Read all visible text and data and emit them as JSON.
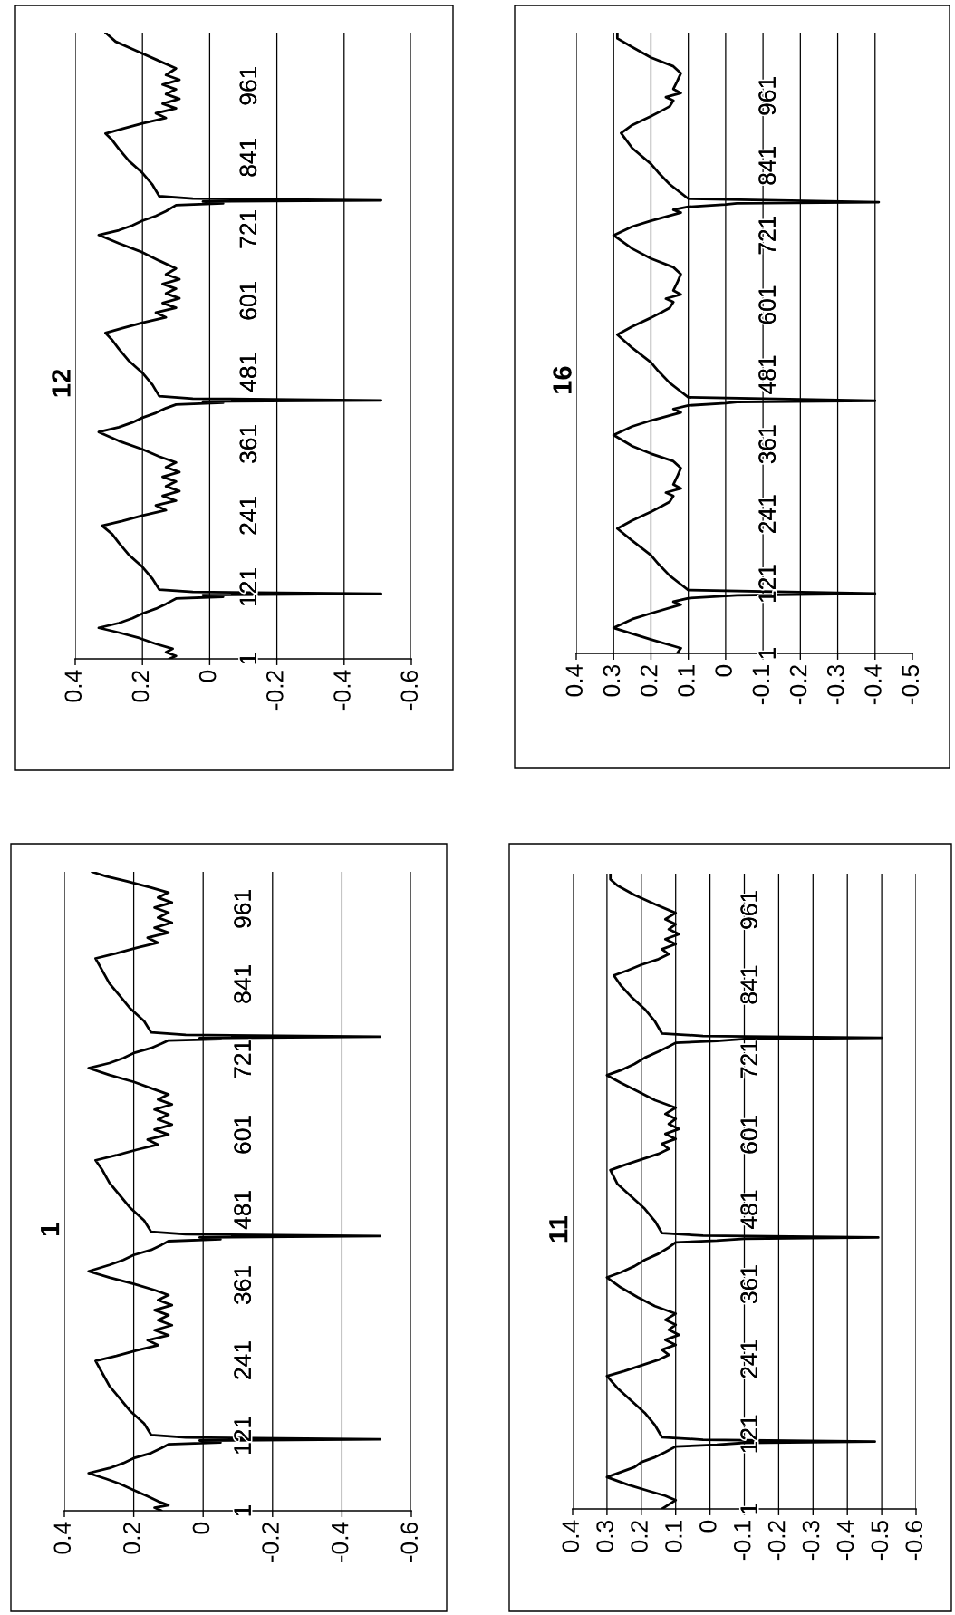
{
  "chart_data": [
    {
      "type": "line",
      "title": "1",
      "xlim": [
        0.4,
        -0.6
      ],
      "xticks": [
        -0.6,
        -0.4,
        -0.2,
        0,
        0.2,
        0.4
      ],
      "ylim": [
        1,
        1020
      ],
      "yticks": [
        1,
        121,
        241,
        361,
        481,
        601,
        721,
        841,
        961
      ],
      "grid": "x",
      "series": [
        {
          "color": "#000000",
          "values": [
            1,
            6,
            10,
            16,
            24,
            34,
            44,
            52,
            61,
            69,
            77,
            85,
            93,
            101,
            107,
            110,
            113,
            115,
            118,
            122,
            140,
            160,
            180,
            200,
            220,
            240,
            248,
            257,
            265,
            273,
            281,
            289,
            297,
            305,
            313,
            321,
            329,
            337,
            345,
            353,
            363,
            373,
            383,
            393,
            401,
            409,
            417,
            425,
            431,
            434,
            437,
            439,
            442,
            446,
            464,
            484,
            504,
            524,
            544,
            560,
            568,
            577,
            585,
            593,
            601,
            609,
            617,
            625,
            633,
            641,
            649,
            657,
            665,
            673,
            685,
            696,
            707,
            715,
            723,
            731,
            739,
            746,
            751,
            753,
            755,
            757,
            760,
            764,
            782,
            802,
            822,
            842,
            862,
            882,
            890,
            899,
            907,
            915,
            923,
            931,
            939,
            947,
            955,
            963,
            971,
            979,
            987,
            995,
            1005,
            1013,
            1020
          ],
          "x": [
            0.12,
            0.14,
            0.1,
            0.13,
            0.16,
            0.2,
            0.24,
            0.28,
            0.33,
            0.27,
            0.23,
            0.2,
            0.15,
            0.12,
            0.1,
            -0.05,
            0.01,
            -0.51,
            0.05,
            0.15,
            0.17,
            0.21,
            0.24,
            0.27,
            0.29,
            0.31,
            0.25,
            0.19,
            0.13,
            0.16,
            0.1,
            0.14,
            0.09,
            0.13,
            0.1,
            0.14,
            0.09,
            0.13,
            0.1,
            0.14,
            0.2,
            0.27,
            0.33,
            0.27,
            0.23,
            0.2,
            0.15,
            0.12,
            0.1,
            -0.05,
            0.01,
            -0.51,
            0.05,
            0.15,
            0.17,
            0.21,
            0.24,
            0.27,
            0.29,
            0.31,
            0.25,
            0.19,
            0.13,
            0.16,
            0.1,
            0.14,
            0.09,
            0.13,
            0.1,
            0.14,
            0.09,
            0.13,
            0.1,
            0.14,
            0.2,
            0.27,
            0.33,
            0.27,
            0.23,
            0.2,
            0.15,
            0.12,
            0.1,
            -0.05,
            0.01,
            -0.51,
            0.05,
            0.15,
            0.17,
            0.21,
            0.24,
            0.27,
            0.29,
            0.31,
            0.25,
            0.19,
            0.13,
            0.16,
            0.1,
            0.14,
            0.09,
            0.13,
            0.1,
            0.14,
            0.09,
            0.13,
            0.1,
            0.15,
            0.22,
            0.28,
            0.32
          ]
        }
      ]
    },
    {
      "type": "line",
      "title": "12",
      "xlim": [
        0.4,
        -0.6
      ],
      "xticks": [
        -0.6,
        -0.4,
        -0.2,
        0,
        0.2,
        0.4
      ],
      "ylim": [
        1,
        1050
      ],
      "yticks": [
        1,
        121,
        241,
        361,
        481,
        601,
        721,
        841,
        961
      ],
      "grid": "x",
      "series": [
        {
          "color": "#000000",
          "values": [
            1,
            6,
            12,
            18,
            26,
            36,
            45,
            53,
            61,
            69,
            77,
            85,
            93,
            102,
            105,
            108,
            110,
            113,
            117,
            135,
            155,
            175,
            195,
            210,
            224,
            232,
            241,
            250,
            258,
            266,
            274,
            282,
            290,
            298,
            306,
            314,
            322,
            330,
            340,
            352,
            366,
            381,
            389,
            397,
            405,
            413,
            421,
            427,
            430,
            432,
            434,
            437,
            441,
            460,
            480,
            500,
            520,
            535,
            547,
            555,
            564,
            573,
            581,
            589,
            597,
            605,
            613,
            621,
            629,
            637,
            645,
            655,
            668,
            682,
            697,
            711,
            719,
            727,
            735,
            743,
            751,
            761,
            764,
            767,
            769,
            772,
            776,
            795,
            815,
            835,
            855,
            870,
            881,
            889,
            898,
            907,
            915,
            923,
            931,
            939,
            947,
            955,
            963,
            971,
            979,
            990,
            1005,
            1020,
            1035,
            1050
          ],
          "x": [
            0.12,
            0.1,
            0.13,
            0.11,
            0.16,
            0.21,
            0.27,
            0.33,
            0.27,
            0.23,
            0.2,
            0.16,
            0.13,
            0.1,
            -0.04,
            0.02,
            -0.51,
            0.05,
            0.15,
            0.17,
            0.2,
            0.24,
            0.27,
            0.29,
            0.32,
            0.26,
            0.2,
            0.13,
            0.16,
            0.1,
            0.14,
            0.09,
            0.13,
            0.1,
            0.14,
            0.09,
            0.13,
            0.1,
            0.15,
            0.2,
            0.27,
            0.33,
            0.27,
            0.23,
            0.2,
            0.16,
            0.13,
            0.1,
            -0.04,
            0.02,
            -0.51,
            0.05,
            0.15,
            0.17,
            0.2,
            0.24,
            0.27,
            0.29,
            0.31,
            0.26,
            0.2,
            0.13,
            0.16,
            0.1,
            0.14,
            0.09,
            0.13,
            0.1,
            0.14,
            0.09,
            0.13,
            0.1,
            0.15,
            0.2,
            0.27,
            0.33,
            0.27,
            0.23,
            0.2,
            0.16,
            0.13,
            0.1,
            -0.04,
            0.02,
            -0.51,
            0.05,
            0.15,
            0.17,
            0.2,
            0.24,
            0.27,
            0.29,
            0.31,
            0.26,
            0.2,
            0.13,
            0.16,
            0.1,
            0.14,
            0.09,
            0.13,
            0.1,
            0.14,
            0.09,
            0.13,
            0.1,
            0.16,
            0.22,
            0.28,
            0.31
          ]
        }
      ]
    },
    {
      "type": "line",
      "title": "11",
      "xlim": [
        0.4,
        -0.6
      ],
      "xticks": [
        -0.6,
        -0.5,
        -0.4,
        -0.3,
        -0.2,
        -0.1,
        0,
        0.1,
        0.2,
        0.3,
        0.4
      ],
      "ylim": [
        1,
        1019
      ],
      "yticks": [
        1,
        121,
        241,
        361,
        481,
        601,
        721,
        841,
        961
      ],
      "grid": "x",
      "series": [
        {
          "color": "#000000",
          "values": [
            1,
            8,
            15,
            22,
            30,
            40,
            52,
            60,
            68,
            76,
            84,
            92,
            101,
            104,
            107,
            109,
            112,
            116,
            135,
            155,
            175,
            195,
            214,
            222,
            231,
            240,
            248,
            256,
            264,
            272,
            280,
            288,
            296,
            304,
            314,
            326,
            340,
            356,
            372,
            380,
            390,
            400,
            410,
            420,
            428,
            431,
            434,
            436,
            439,
            443,
            462,
            482,
            502,
            522,
            544,
            552,
            561,
            570,
            578,
            586,
            594,
            602,
            610,
            618,
            626,
            634,
            644,
            656,
            670,
            684,
            696,
            704,
            714,
            724,
            734,
            742,
            748,
            751,
            754,
            756,
            759,
            763,
            782,
            802,
            822,
            840,
            856,
            864,
            873,
            882,
            890,
            898,
            906,
            914,
            922,
            930,
            938,
            946,
            956,
            970,
            985,
            1000,
            1010,
            1019
          ],
          "x": [
            0.14,
            0.12,
            0.1,
            0.13,
            0.18,
            0.24,
            0.3,
            0.26,
            0.22,
            0.2,
            0.16,
            0.13,
            0.1,
            -0.02,
            -0.1,
            -0.48,
            0.02,
            0.14,
            0.16,
            0.19,
            0.23,
            0.27,
            0.3,
            0.25,
            0.2,
            0.15,
            0.12,
            0.14,
            0.1,
            0.13,
            0.09,
            0.12,
            0.1,
            0.13,
            0.1,
            0.16,
            0.21,
            0.26,
            0.3,
            0.26,
            0.22,
            0.19,
            0.15,
            0.12,
            0.1,
            -0.02,
            -0.1,
            -0.49,
            0.02,
            0.14,
            0.16,
            0.19,
            0.23,
            0.27,
            0.29,
            0.25,
            0.2,
            0.15,
            0.12,
            0.14,
            0.1,
            0.13,
            0.09,
            0.12,
            0.1,
            0.13,
            0.1,
            0.16,
            0.21,
            0.26,
            0.3,
            0.26,
            0.22,
            0.19,
            0.15,
            0.12,
            0.1,
            -0.02,
            -0.1,
            -0.5,
            0.02,
            0.14,
            0.16,
            0.19,
            0.23,
            0.26,
            0.28,
            0.24,
            0.2,
            0.15,
            0.12,
            0.14,
            0.1,
            0.13,
            0.09,
            0.12,
            0.1,
            0.13,
            0.1,
            0.16,
            0.22,
            0.27,
            0.29,
            0.29
          ]
        }
      ]
    },
    {
      "type": "line",
      "title": "16",
      "xlim": [
        0.4,
        -0.5
      ],
      "xticks": [
        -0.5,
        -0.4,
        -0.3,
        -0.2,
        -0.1,
        0,
        0.1,
        0.2,
        0.3,
        0.4
      ],
      "ylim": [
        1,
        1070
      ],
      "yticks": [
        1,
        121,
        241,
        361,
        481,
        601,
        721,
        841,
        961
      ],
      "grid": "x",
      "series": [
        {
          "color": "#000000",
          "values": [
            1,
            10,
            25,
            45,
            60,
            70,
            85,
            90,
            96,
            100,
            101,
            104,
            110,
            120,
            135,
            155,
            170,
            195,
            216,
            230,
            245,
            255,
            262,
            272,
            278,
            285,
            292,
            305,
            320,
            332,
            345,
            358,
            377,
            392,
            402,
            416,
            422,
            428,
            432,
            434,
            436,
            442,
            452,
            467,
            487,
            502,
            527,
            550,
            564,
            579,
            589,
            596,
            606,
            612,
            619,
            626,
            639,
            654,
            666,
            681,
            698,
            721,
            736,
            746,
            760,
            765,
            770,
            774,
            776,
            778,
            784,
            794,
            809,
            829,
            844,
            871,
            897,
            911,
            926,
            936,
            943,
            953,
            959,
            966,
            973,
            986,
            1000,
            1012,
            1027,
            1045,
            1060,
            1070
          ],
          "x": [
            0.13,
            0.12,
            0.2,
            0.3,
            0.25,
            0.2,
            0.12,
            0.14,
            0.1,
            0.0,
            -0.03,
            -0.4,
            0.1,
            0.12,
            0.15,
            0.18,
            0.2,
            0.25,
            0.29,
            0.25,
            0.2,
            0.17,
            0.15,
            0.14,
            0.16,
            0.12,
            0.14,
            0.13,
            0.12,
            0.14,
            0.2,
            0.25,
            0.3,
            0.25,
            0.2,
            0.12,
            0.14,
            0.1,
            0.0,
            -0.03,
            -0.4,
            0.1,
            0.12,
            0.15,
            0.18,
            0.2,
            0.25,
            0.29,
            0.25,
            0.2,
            0.17,
            0.15,
            0.14,
            0.16,
            0.12,
            0.14,
            0.13,
            0.12,
            0.14,
            0.2,
            0.25,
            0.3,
            0.25,
            0.2,
            0.12,
            0.14,
            0.1,
            0.0,
            -0.03,
            -0.41,
            0.1,
            0.12,
            0.15,
            0.18,
            0.2,
            0.25,
            0.28,
            0.25,
            0.2,
            0.17,
            0.15,
            0.14,
            0.16,
            0.12,
            0.14,
            0.13,
            0.12,
            0.14,
            0.2,
            0.25,
            0.29,
            0.29
          ]
        }
      ]
    }
  ]
}
